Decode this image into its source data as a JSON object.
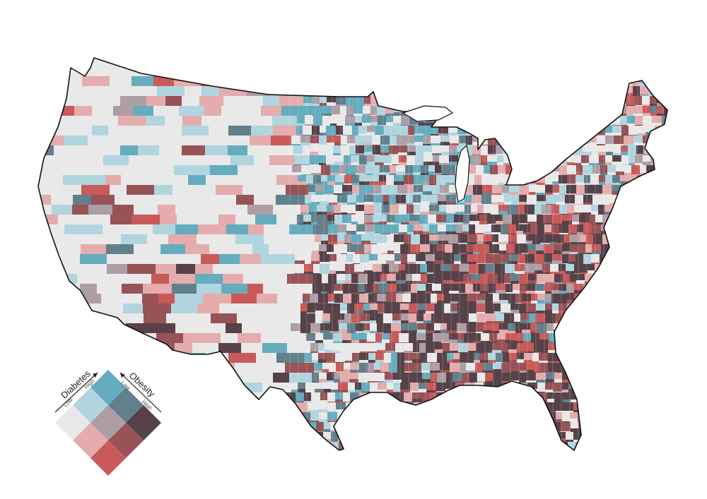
{
  "map": {
    "subject": "contiguous-united-states-counties",
    "encoding": "bivariate-choropleth",
    "colors": {
      "none": "#e9e9e9",
      "ob_low_db_low": "#e8e8e8",
      "ob_mid_db_low": "#e4acac",
      "ob_high_db_low": "#c85a5a",
      "ob_low_db_mid": "#b0d5df",
      "ob_mid_db_mid": "#ad9ea5",
      "ob_high_db_mid": "#985356",
      "ob_low_db_high": "#64acbe",
      "ob_mid_db_high": "#627f8c",
      "ob_high_db_high": "#574249",
      "outline": "#111111",
      "county_line": "#ffffff"
    }
  },
  "legend": {
    "diabetes_title": "Diabetes",
    "diabetes_low": "Low",
    "diabetes_high": "High",
    "obesity_title": "Obesity",
    "obesity_low": "Low",
    "obesity_high": "High",
    "grid": [
      [
        "ob_low_db_high",
        "ob_mid_db_high",
        "ob_high_db_high"
      ],
      [
        "ob_low_db_mid",
        "ob_mid_db_mid",
        "ob_high_db_mid"
      ],
      [
        "ob_low_db_low",
        "ob_mid_db_low",
        "ob_high_db_low"
      ]
    ]
  }
}
